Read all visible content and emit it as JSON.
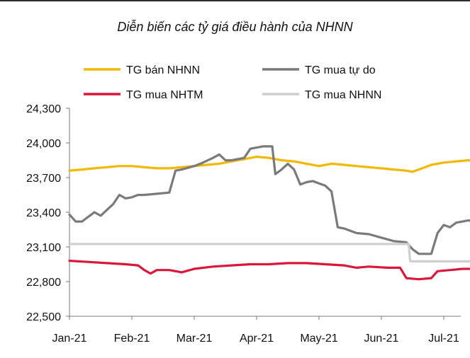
{
  "chart_data": {
    "type": "line",
    "title": "Diễn biến các tỷ giá điều hành của NHNN",
    "xlabel": "",
    "ylabel": "",
    "ylim": [
      22500,
      24300
    ],
    "yticks": [
      "24,300",
      "24,000",
      "23,700",
      "23,400",
      "23,100",
      "22,800",
      "22,500"
    ],
    "ytick_values": [
      24300,
      24000,
      23700,
      23400,
      23100,
      22800,
      22500
    ],
    "x_categories": [
      "Jan-21",
      "Feb-21",
      "Mar-21",
      "Apr-21",
      "May-21",
      "Jun-21",
      "Jul-21"
    ],
    "legend_position": "top",
    "series": [
      {
        "name": "TG bán NHNN",
        "color": "#f2b800",
        "points": [
          [
            0,
            23760
          ],
          [
            0.2,
            23770
          ],
          [
            0.4,
            23780
          ],
          [
            0.6,
            23790
          ],
          [
            0.8,
            23800
          ],
          [
            1.0,
            23800
          ],
          [
            1.2,
            23790
          ],
          [
            1.4,
            23780
          ],
          [
            1.6,
            23780
          ],
          [
            1.8,
            23790
          ],
          [
            2.0,
            23800
          ],
          [
            2.2,
            23810
          ],
          [
            2.4,
            23820
          ],
          [
            2.6,
            23840
          ],
          [
            2.8,
            23860
          ],
          [
            3.0,
            23880
          ],
          [
            3.2,
            23870
          ],
          [
            3.4,
            23850
          ],
          [
            3.6,
            23840
          ],
          [
            3.8,
            23820
          ],
          [
            4.0,
            23800
          ],
          [
            4.2,
            23820
          ],
          [
            4.4,
            23810
          ],
          [
            4.6,
            23800
          ],
          [
            4.8,
            23790
          ],
          [
            5.0,
            23780
          ],
          [
            5.2,
            23770
          ],
          [
            5.4,
            23760
          ],
          [
            5.5,
            23750
          ],
          [
            5.6,
            23770
          ],
          [
            5.8,
            23810
          ],
          [
            6.0,
            23830
          ],
          [
            6.2,
            23840
          ],
          [
            6.4,
            23850
          ],
          [
            6.6,
            23840
          ]
        ]
      },
      {
        "name": "TG mua tự do",
        "color": "#7a7a7a",
        "points": [
          [
            0,
            23380
          ],
          [
            0.1,
            23320
          ],
          [
            0.2,
            23320
          ],
          [
            0.3,
            23360
          ],
          [
            0.4,
            23400
          ],
          [
            0.5,
            23370
          ],
          [
            0.6,
            23420
          ],
          [
            0.7,
            23470
          ],
          [
            0.8,
            23550
          ],
          [
            0.9,
            23520
          ],
          [
            1.0,
            23530
          ],
          [
            1.1,
            23550
          ],
          [
            1.2,
            23550
          ],
          [
            1.4,
            23560
          ],
          [
            1.6,
            23570
          ],
          [
            1.7,
            23760
          ],
          [
            1.8,
            23770
          ],
          [
            2.0,
            23800
          ],
          [
            2.1,
            23820
          ],
          [
            2.3,
            23870
          ],
          [
            2.4,
            23900
          ],
          [
            2.5,
            23850
          ],
          [
            2.6,
            23850
          ],
          [
            2.8,
            23870
          ],
          [
            2.9,
            23950
          ],
          [
            3.1,
            23970
          ],
          [
            3.25,
            23970
          ],
          [
            3.3,
            23730
          ],
          [
            3.4,
            23770
          ],
          [
            3.5,
            23820
          ],
          [
            3.6,
            23770
          ],
          [
            3.7,
            23640
          ],
          [
            3.8,
            23660
          ],
          [
            3.9,
            23670
          ],
          [
            4.0,
            23650
          ],
          [
            4.1,
            23630
          ],
          [
            4.2,
            23580
          ],
          [
            4.3,
            23270
          ],
          [
            4.4,
            23260
          ],
          [
            4.6,
            23220
          ],
          [
            4.8,
            23210
          ],
          [
            5.0,
            23180
          ],
          [
            5.2,
            23150
          ],
          [
            5.4,
            23140
          ],
          [
            5.5,
            23080
          ],
          [
            5.6,
            23040
          ],
          [
            5.8,
            23040
          ],
          [
            5.9,
            23220
          ],
          [
            6.0,
            23290
          ],
          [
            6.1,
            23270
          ],
          [
            6.2,
            23310
          ],
          [
            6.3,
            23320
          ],
          [
            6.4,
            23330
          ],
          [
            6.5,
            23310
          ],
          [
            6.6,
            23250
          ],
          [
            6.65,
            23210
          ]
        ]
      },
      {
        "name": "TG mua NHTM",
        "color": "#d8173a",
        "points": [
          [
            0,
            22980
          ],
          [
            0.3,
            22970
          ],
          [
            0.6,
            22960
          ],
          [
            0.9,
            22950
          ],
          [
            1.1,
            22940
          ],
          [
            1.2,
            22900
          ],
          [
            1.3,
            22870
          ],
          [
            1.4,
            22900
          ],
          [
            1.6,
            22900
          ],
          [
            1.8,
            22880
          ],
          [
            2.0,
            22910
          ],
          [
            2.3,
            22930
          ],
          [
            2.6,
            22940
          ],
          [
            2.9,
            22950
          ],
          [
            3.2,
            22950
          ],
          [
            3.5,
            22960
          ],
          [
            3.8,
            22960
          ],
          [
            4.1,
            22950
          ],
          [
            4.4,
            22940
          ],
          [
            4.6,
            22920
          ],
          [
            4.8,
            22930
          ],
          [
            5.1,
            22920
          ],
          [
            5.3,
            22920
          ],
          [
            5.4,
            22830
          ],
          [
            5.6,
            22820
          ],
          [
            5.8,
            22830
          ],
          [
            5.9,
            22890
          ],
          [
            6.1,
            22900
          ],
          [
            6.3,
            22910
          ],
          [
            6.5,
            22910
          ],
          [
            6.6,
            22920
          ]
        ]
      },
      {
        "name": "TG mua NHNN",
        "color": "#cfcfcf",
        "points": [
          [
            0,
            23125
          ],
          [
            1.0,
            23125
          ],
          [
            1.1,
            23125
          ],
          [
            2.0,
            23125
          ],
          [
            3.0,
            23125
          ],
          [
            4.0,
            23125
          ],
          [
            5.0,
            23125
          ],
          [
            5.44,
            23125
          ],
          [
            5.46,
            22975
          ],
          [
            6.0,
            22975
          ],
          [
            6.7,
            22975
          ]
        ]
      }
    ]
  }
}
